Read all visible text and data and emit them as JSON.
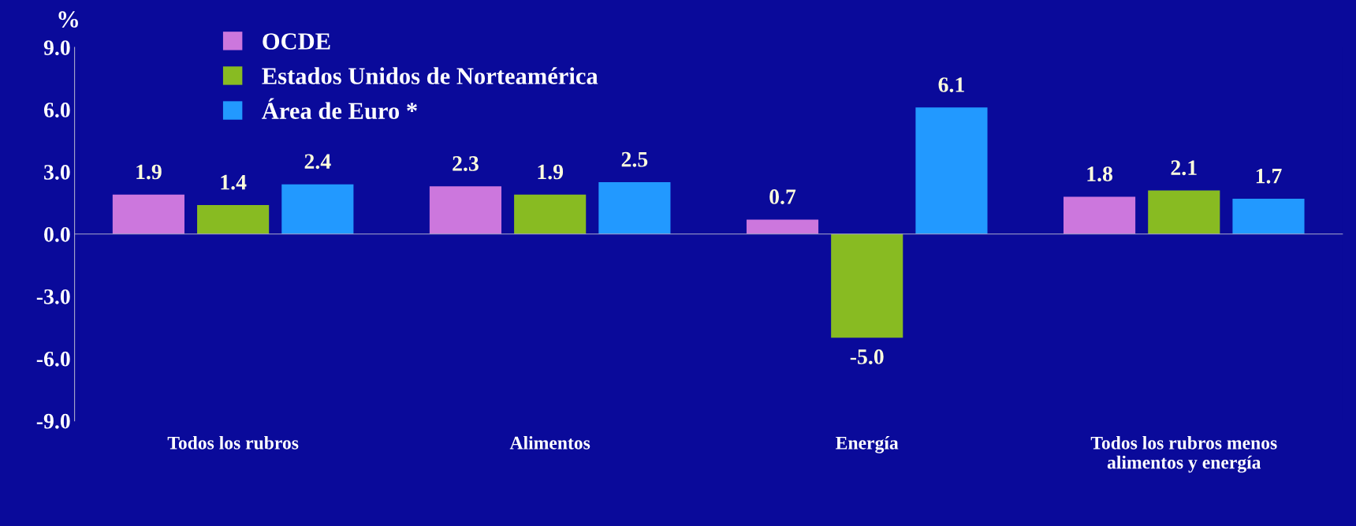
{
  "chart_data": {
    "type": "bar",
    "ylabel": "%",
    "categories": [
      "Todos los rubros",
      "Alimentos",
      "Energía",
      "Todos los rubros menos\nalimentos y energía"
    ],
    "series": [
      {
        "name": "OCDE",
        "color": "#cc77dd",
        "values": [
          1.9,
          2.3,
          0.7,
          1.8
        ],
        "value_labels": [
          "1.9",
          "2.3",
          "0.7",
          "1.8"
        ]
      },
      {
        "name": "Estados Unidos de Norteamérica",
        "color": "#88bb22",
        "values": [
          1.4,
          1.9,
          -5.0,
          2.1
        ],
        "value_labels": [
          "1.4",
          "1.9",
          "-5.0",
          "2.1"
        ]
      },
      {
        "name": "Área de Euro *",
        "color": "#2299ff",
        "values": [
          2.4,
          2.5,
          6.1,
          1.7
        ],
        "value_labels": [
          "2.4",
          "2.5",
          "6.1",
          "1.7"
        ]
      }
    ],
    "ylim": [
      -9,
      9
    ],
    "yticks": [
      {
        "value": -9,
        "label": "-9.0"
      },
      {
        "value": -6,
        "label": "-6.0"
      },
      {
        "value": -3,
        "label": "-3.0"
      },
      {
        "value": 0,
        "label": "0.0"
      },
      {
        "value": 3,
        "label": "3.0"
      },
      {
        "value": 6,
        "label": "6.0"
      },
      {
        "value": 9,
        "label": "9.0"
      }
    ],
    "legend": "top left"
  }
}
